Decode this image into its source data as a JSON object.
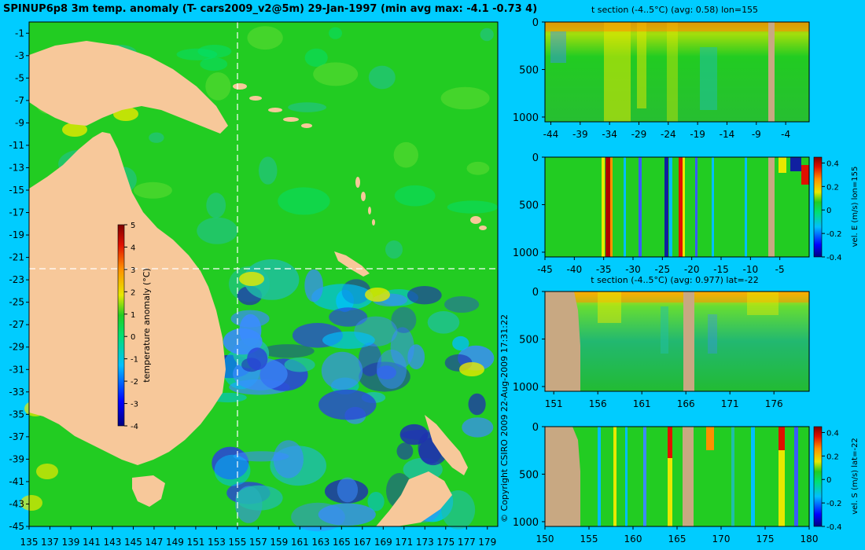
{
  "title": "SPINUP6p8 3m temp. anomaly (T- cars2009_v2@5m) 29-Jan-1997 (min avg max: -4.1 -0.73 4)",
  "copyright": "© Copyright CSIRO 2009   22-Aug-2009 17:31:22",
  "colors": {
    "background": "#00ccff",
    "land": "#f7c89a",
    "section_land": "#c8a882",
    "ocean_base": "#22cc22",
    "cold_anomaly": "#1f2fb0",
    "warm_anomaly": "#e8e800",
    "guide_line": "#ffffff"
  },
  "chart_data": [
    {
      "type": "heatmap",
      "panel": "map",
      "title": "SPINUP6p8 3m temp. anomaly (T- cars2009_v2@5m) 29-Jan-1997 (min avg max: -4.1 -0.73 4)",
      "x_ticks": [
        "135",
        "137",
        "139",
        "141",
        "143",
        "145",
        "147",
        "149",
        "151",
        "153",
        "155",
        "157",
        "159",
        "161",
        "163",
        "165",
        "167",
        "169",
        "171",
        "173",
        "175",
        "177",
        "179"
      ],
      "y_ticks": [
        "-1",
        "-3",
        "-5",
        "-7",
        "-9",
        "-11",
        "-13",
        "-15",
        "-17",
        "-19",
        "-21",
        "-23",
        "-25",
        "-27",
        "-29",
        "-31",
        "-33",
        "-35",
        "-37",
        "-39",
        "-41",
        "-43",
        "-45"
      ],
      "xlim": [
        135,
        180
      ],
      "ylim": [
        -45,
        0
      ],
      "section_lon": 155,
      "section_lat": -22,
      "colorbar": {
        "label": "temperature anomaly (°C)",
        "ticks": [
          "5",
          "4",
          "3",
          "2",
          "1",
          "0",
          "-1",
          "-2",
          "-3",
          "-4"
        ],
        "range": [
          -4,
          5
        ]
      }
    },
    {
      "type": "heatmap",
      "panel": "t-section-lon155",
      "title": "t section (-4..5°C) (avg: 0.58) lon=155",
      "x_ticks": [
        "-44",
        "-39",
        "-34",
        "-29",
        "-24",
        "-19",
        "-14",
        "-9",
        "-4"
      ],
      "y_ticks": [
        "0",
        "500",
        "1000"
      ],
      "xlim": [
        -45,
        0
      ],
      "ylim": [
        1050,
        0
      ]
    },
    {
      "type": "heatmap",
      "panel": "u-section-lon155",
      "title": "",
      "x_ticks": [
        "-45",
        "-40",
        "-35",
        "-30",
        "-25",
        "-20",
        "-15",
        "-10",
        "-5"
      ],
      "y_ticks": [
        "0",
        "500",
        "1000"
      ],
      "xlim": [
        -45,
        0
      ],
      "ylim": [
        1050,
        0
      ],
      "colorbar": {
        "label": "vel. E (m/s) lon=155",
        "ticks": [
          "0.4",
          "0.2",
          "0",
          "-0.2",
          "-0.4"
        ],
        "range": [
          -0.4,
          0.45
        ]
      }
    },
    {
      "type": "heatmap",
      "panel": "t-section-lat-22",
      "title": "t section (-4..5°C) (avg: 0.977) lat=-22",
      "x_ticks": [
        "151",
        "156",
        "161",
        "166",
        "171",
        "176"
      ],
      "y_ticks": [
        "0",
        "500",
        "1000"
      ],
      "xlim": [
        150,
        180
      ],
      "ylim": [
        1050,
        0
      ]
    },
    {
      "type": "heatmap",
      "panel": "v-section-lat-22",
      "title": "",
      "x_ticks": [
        "150",
        "155",
        "160",
        "165",
        "170",
        "175",
        "180"
      ],
      "y_ticks": [
        "0",
        "500",
        "1000"
      ],
      "xlim": [
        150,
        180
      ],
      "ylim": [
        1050,
        0
      ],
      "colorbar": {
        "label": "vel. S (m/s) lat=-22",
        "ticks": [
          "0.4",
          "0.2",
          "0",
          "-0.2",
          "-0.4"
        ],
        "range": [
          -0.4,
          0.45
        ]
      }
    }
  ]
}
